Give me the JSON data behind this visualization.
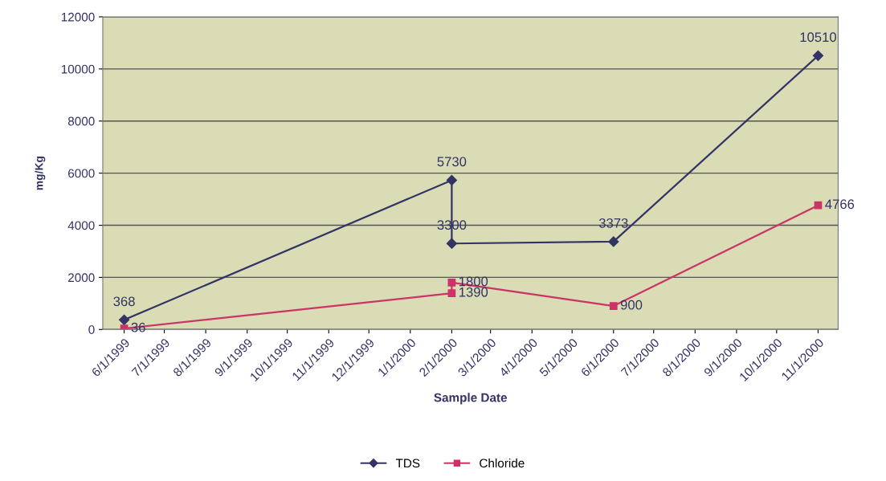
{
  "chart_data": {
    "type": "line",
    "xlabel": "Sample Date",
    "ylabel": "mg/Kg",
    "xlim": [
      "1999-05-16",
      "2000-11-16"
    ],
    "xticks": [
      {
        "value": "1999-06-01",
        "label": "6/1/1999"
      },
      {
        "value": "1999-07-01",
        "label": "7/1/1999"
      },
      {
        "value": "1999-08-01",
        "label": "8/1/1999"
      },
      {
        "value": "1999-09-01",
        "label": "9/1/1999"
      },
      {
        "value": "1999-10-01",
        "label": "10/1/1999"
      },
      {
        "value": "1999-11-01",
        "label": "11/1/1999"
      },
      {
        "value": "1999-12-01",
        "label": "12/1/1999"
      },
      {
        "value": "2000-01-01",
        "label": "1/1/2000"
      },
      {
        "value": "2000-02-01",
        "label": "2/1/2000"
      },
      {
        "value": "2000-03-01",
        "label": "3/1/2000"
      },
      {
        "value": "2000-04-01",
        "label": "4/1/2000"
      },
      {
        "value": "2000-05-01",
        "label": "5/1/2000"
      },
      {
        "value": "2000-06-01",
        "label": "6/1/2000"
      },
      {
        "value": "2000-07-01",
        "label": "7/1/2000"
      },
      {
        "value": "2000-08-01",
        "label": "8/1/2000"
      },
      {
        "value": "2000-09-01",
        "label": "9/1/2000"
      },
      {
        "value": "2000-10-01",
        "label": "10/1/2000"
      },
      {
        "value": "2000-11-01",
        "label": "11/1/2000"
      }
    ],
    "ylim": [
      0,
      12000
    ],
    "yticks": [
      0,
      2000,
      4000,
      6000,
      8000,
      10000,
      12000
    ],
    "grid": "y",
    "legend": "bottom",
    "data_labels": true,
    "line_style": "solid",
    "series": [
      {
        "name": "TDS",
        "color": "#333366",
        "marker": "diamond",
        "x": [
          "1999-06-01",
          "2000-02-01",
          "2000-02-01",
          "2000-06-01",
          "2000-11-01"
        ],
        "values": [
          368,
          5730,
          3300,
          3373,
          10510
        ]
      },
      {
        "name": "Chloride",
        "color": "#cc3366",
        "marker": "square",
        "x": [
          "1999-06-01",
          "2000-02-01",
          "2000-02-01",
          "2000-06-01",
          "2000-11-01"
        ],
        "values": [
          36,
          1390,
          1800,
          900,
          4766
        ]
      }
    ]
  }
}
